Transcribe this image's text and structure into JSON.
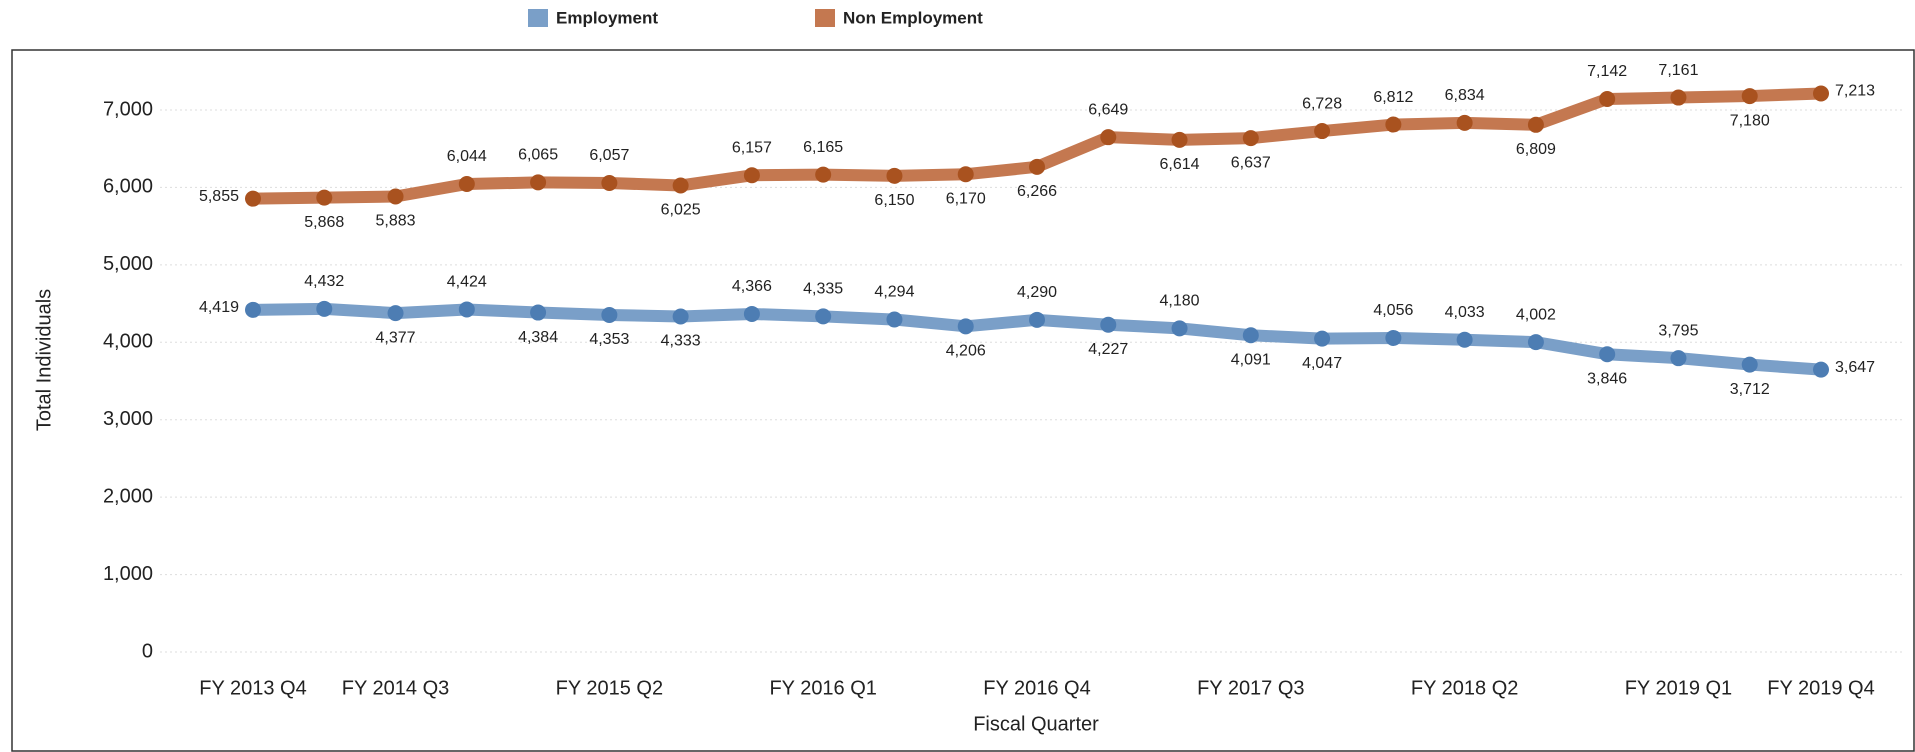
{
  "chart_data": {
    "type": "line",
    "x_label": "Fiscal Quarter",
    "y_label": "Total Individuals",
    "categories": [
      "FY 2013 Q4",
      null,
      "FY 2014 Q3",
      null,
      null,
      "FY 2015 Q2",
      null,
      null,
      "FY 2016 Q1",
      null,
      null,
      "FY 2016 Q4",
      null,
      null,
      "FY 2017 Q3",
      null,
      null,
      "FY 2018 Q2",
      null,
      null,
      "FY 2019 Q1",
      null,
      "FY 2019 Q4"
    ],
    "series": [
      {
        "name": "Employment",
        "color": "#7a9fc8",
        "marker_color": "#4d7db3",
        "values": [
          4419,
          4432,
          4377,
          4424,
          4384,
          4353,
          4333,
          4366,
          4335,
          4294,
          4206,
          4290,
          4227,
          4180,
          4091,
          4047,
          4056,
          4033,
          4002,
          3846,
          3795,
          3712,
          3647
        ],
        "value_labels": [
          "4,419",
          "4,432",
          "4,377",
          "4,424",
          "4,384",
          "4,353",
          "4,333",
          "4,366",
          "4,335",
          "4,294",
          "4,206",
          "4,290",
          "4,227",
          "4,180",
          "4,091",
          "4,047",
          "4,056",
          "4,033",
          "4,002",
          "3,846",
          "3,795",
          "3,712",
          "3,647"
        ]
      },
      {
        "name": "Non Employment",
        "color": "#c47850",
        "marker_color": "#a9521f",
        "values": [
          5855,
          5868,
          5883,
          6044,
          6065,
          6057,
          6025,
          6157,
          6165,
          6150,
          6170,
          6266,
          6649,
          6614,
          6637,
          6728,
          6812,
          6834,
          6809,
          7142,
          7161,
          7180,
          7213
        ],
        "value_labels": [
          "5,855",
          "5,868",
          "5,883",
          "6,044",
          "6,065",
          "6,057",
          "6,025",
          "6,157",
          "6,165",
          "6,150",
          "6,170",
          "6,266",
          "6,649",
          "6,614",
          "6,637",
          "6,728",
          "6,812",
          "6,834",
          "6,809",
          "7,142",
          "7,161",
          "7,180",
          "7,213"
        ]
      }
    ],
    "ylim": [
      0,
      7700
    ],
    "yticks": [
      0,
      {
        "value": 1000,
        "label": "1,000"
      },
      {
        "value": 2000,
        "label": "2,000"
      },
      {
        "value": 3000,
        "label": "3,000"
      },
      {
        "value": 4000,
        "label": "4,000"
      },
      {
        "value": 5000,
        "label": "5,000"
      },
      {
        "value": 6000,
        "label": "6,000"
      },
      {
        "value": 7000,
        "label": "7,000"
      }
    ],
    "grid": true,
    "legend": "top"
  }
}
